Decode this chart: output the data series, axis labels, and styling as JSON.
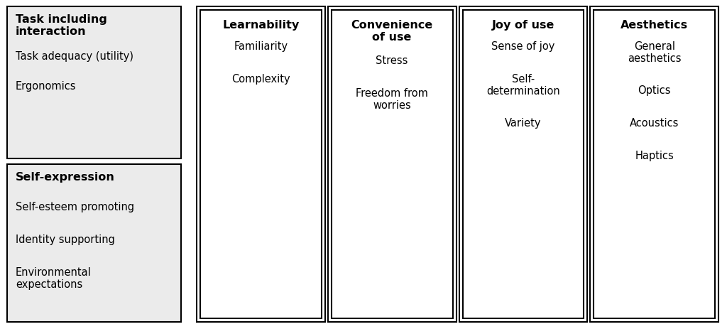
{
  "bg_color": "#ffffff",
  "box_color": "#ebebeb",
  "box_edge_color": "#000000",
  "text_color": "#000000",
  "fig_width": 10.24,
  "fig_height": 4.64,
  "left_boxes": [
    {
      "title": "Task including\ninteraction",
      "items": [
        "Task adequacy (utility)",
        "Ergonomics"
      ]
    },
    {
      "title": "Self-expression",
      "items": [
        "Self-esteem promoting",
        "Identity supporting",
        "Environmental\nexpectations"
      ]
    }
  ],
  "right_columns": [
    {
      "title": "Learnability",
      "items": [
        "Familiarity",
        "Complexity"
      ]
    },
    {
      "title": "Convenience\nof use",
      "items": [
        "Stress",
        "Freedom from\nworries"
      ]
    },
    {
      "title": "Joy of use",
      "items": [
        "Sense of joy",
        "Self-\ndetermination",
        "Variety"
      ]
    },
    {
      "title": "Aesthetics",
      "items": [
        "General\naesthetics",
        "Optics",
        "Acoustics",
        "Haptics"
      ]
    }
  ]
}
